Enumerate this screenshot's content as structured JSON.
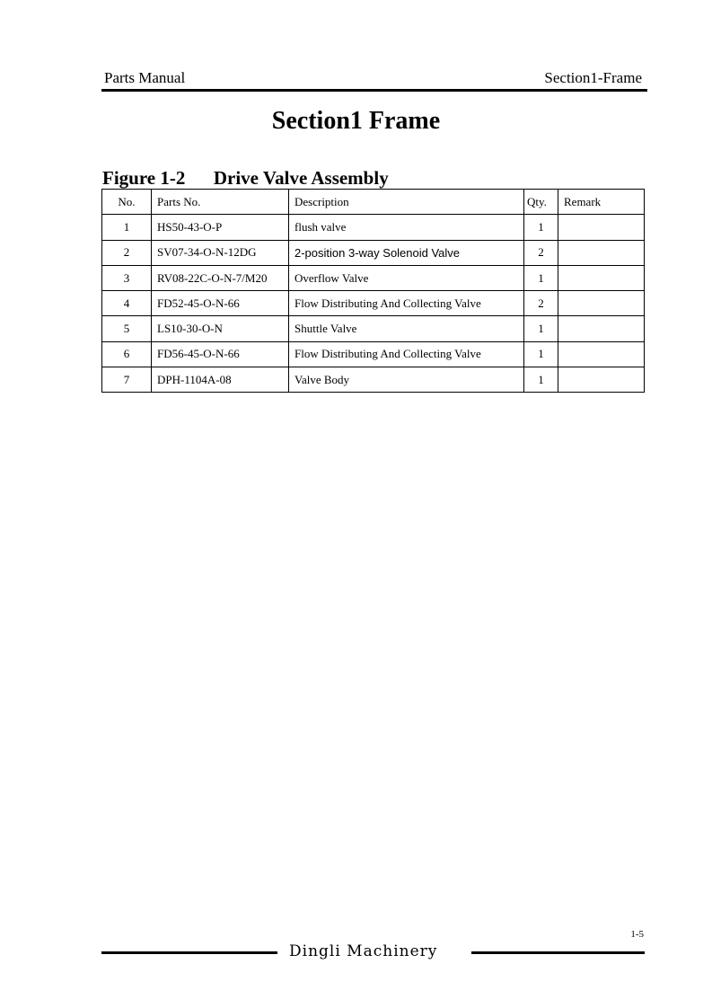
{
  "header": {
    "left": "Parts Manual",
    "right": "Section1-Frame"
  },
  "title": "Section1 Frame",
  "figure": {
    "label": "Figure 1-2",
    "name": "Drive Valve Assembly"
  },
  "table": {
    "headers": [
      "No.",
      "Parts No.",
      "Description",
      "Qty.",
      "Remark"
    ],
    "rows": [
      [
        "1",
        "HS50-43-O-P",
        "flush valve",
        "1",
        ""
      ],
      [
        "2",
        "SV07-34-O-N-12DG",
        "2-position 3-way Solenoid Valve",
        "2",
        ""
      ],
      [
        "3",
        "RV08-22C-O-N-7/M20",
        "Overflow Valve",
        "1",
        ""
      ],
      [
        "4",
        "FD52-45-O-N-66",
        "Flow Distributing And Collecting Valve",
        "2",
        ""
      ],
      [
        "5",
        "LS10-30-O-N",
        "Shuttle Valve",
        "1",
        ""
      ],
      [
        "6",
        "FD56-45-O-N-66",
        "Flow Distributing And Collecting Valve",
        "1",
        ""
      ],
      [
        "7",
        "DPH-1104A-08",
        "Valve Body",
        "1",
        ""
      ]
    ]
  },
  "footer": {
    "page": "1-5",
    "company": "Dingli Machinery"
  }
}
